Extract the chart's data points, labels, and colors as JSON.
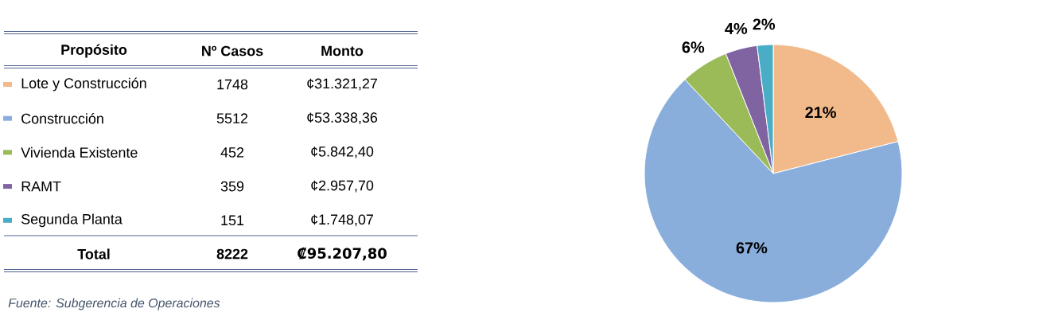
{
  "chart_data": [
    {
      "type": "other",
      "legend_title": "Propósito",
      "categories": [
        "Lote y Construcción",
        "Construcción",
        "Vivienda Existente",
        "RAMT",
        "Segunda Planta"
      ],
      "colors": [
        "#f2b98a",
        "#8aaedc",
        "#9bbb59",
        "#8064a2",
        "#4bacc6"
      ],
      "series": [
        {
          "name": "Nº Casos",
          "values": [
            1748,
            5512,
            452,
            359,
            151
          ]
        },
        {
          "name": "Monto",
          "values": [
            31321.27,
            53338.36,
            5842.4,
            2957.7,
            1748.07
          ],
          "value_labels": [
            "¢31.321,27",
            "¢53.338,36",
            "¢5.842,40",
            "¢2.957,70",
            "¢1.748,07"
          ]
        }
      ],
      "data_labels": true,
      "totals": [
        "8222",
        "₡95.207,80"
      ],
      "annotations": [
        "Total",
        "Fuente: Subgerencia de Operaciones"
      ]
    },
    {
      "type": "pie",
      "categories": [
        null,
        null,
        null,
        null,
        null
      ],
      "values": [
        21,
        67,
        6,
        4,
        2
      ],
      "colors": [
        "#f2b98a",
        "#8aaedc",
        "#9bbb59",
        "#8064a2",
        "#4bacc6"
      ],
      "value_labels": [
        "21%",
        "67%",
        "6%",
        "4%",
        "2%"
      ]
    }
  ]
}
